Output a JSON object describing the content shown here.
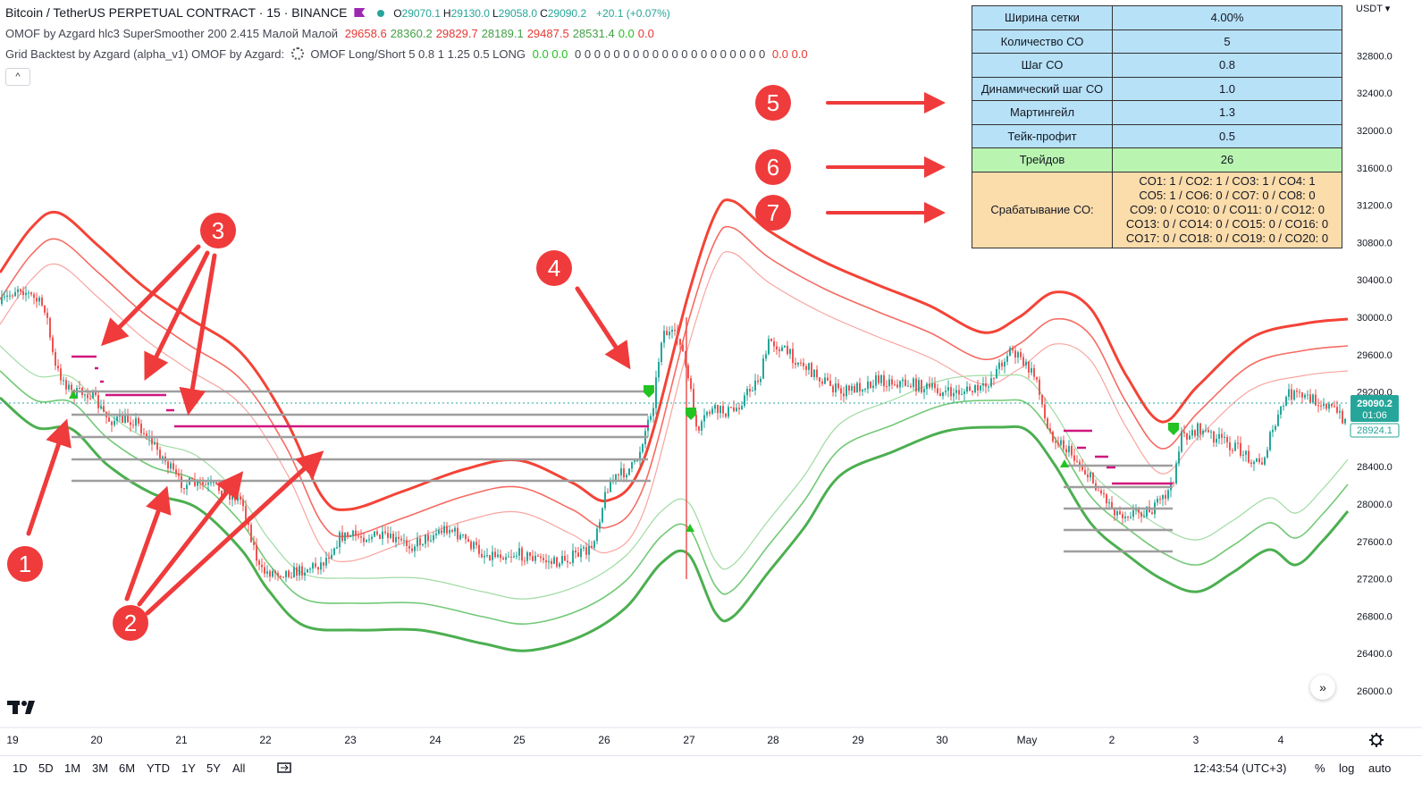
{
  "legend": {
    "symbol": "Bitcoin / TetherUS PERPETUAL CONTRACT · 15 · BINANCE",
    "ohlc": [
      {
        "key": "O",
        "val": "29070.1"
      },
      {
        "key": "H",
        "val": "29130.0"
      },
      {
        "key": "L",
        "val": "29058.0"
      },
      {
        "key": "C",
        "val": "29090.2"
      }
    ],
    "change": "+20.1 (+0.07%)",
    "ind1_name": "OMOF by Azgard hlc3 SuperSmoother 200 2.415 Малой Малой",
    "ind1_values": [
      {
        "v": "29658.6",
        "c": "#e53935"
      },
      {
        "v": "28360.2",
        "c": "#43a047"
      },
      {
        "v": "29829.7",
        "c": "#e53935"
      },
      {
        "v": "28189.1",
        "c": "#43a047"
      },
      {
        "v": "29487.5",
        "c": "#e53935"
      },
      {
        "v": "28531.4",
        "c": "#43a047"
      },
      {
        "v": "0.0",
        "c": "#22c322"
      },
      {
        "v": "0.0",
        "c": "#e53935"
      }
    ],
    "ind2_name": "Grid Backtest by Azgard (alpha_v1) OMOF by Azgard:",
    "ind2_params": "OMOF Long/Short 5 0.8 1 1.25 0.5 LONG",
    "ind2_values_a": "0.0 0.0",
    "ind2_zeros": "0 0 0 0 0 0 0 0 0 0 0 0 0 0 0 0 0 0 0 0",
    "ind2_values_b": "0.0 0.0",
    "collapse_icon": "^"
  },
  "params_table": {
    "rows": [
      {
        "label": "Ширина сетки",
        "value": "4.00%",
        "color": "blue"
      },
      {
        "label": "Количество СО",
        "value": "5",
        "color": "blue"
      },
      {
        "label": "Шаг СО",
        "value": "0.8",
        "color": "blue"
      },
      {
        "label": "Динамический шаг СО",
        "value": "1.0",
        "color": "blue"
      },
      {
        "label": "Мартингейл",
        "value": "1.3",
        "color": "blue"
      },
      {
        "label": "Тейк-профит",
        "value": "0.5",
        "color": "blue"
      },
      {
        "label": "Трейдов",
        "value": "26",
        "color": "green"
      }
    ],
    "so_label": "Срабатывание СО:",
    "so_lines": [
      "CO1: 1 / CO2: 1 / CO3: 1 / CO4: 1",
      "CO5: 1 / CO6: 0 / CO7: 0 / CO8: 0",
      "CO9: 0 / CO10: 0 / CO11: 0 / CO12: 0",
      "CO13: 0 / CO14: 0 / CO15: 0 / CO16: 0",
      "CO17: 0 / CO18: 0 / CO19: 0 / CO20: 0"
    ]
  },
  "price_axis": {
    "currency": "USDT ▾",
    "labels": [
      "32800.0",
      "32400.0",
      "32000.0",
      "31600.0",
      "31200.0",
      "30800.0",
      "30400.0",
      "30000.0",
      "29600.0",
      "29200.0",
      "28800.0",
      "28400.0",
      "28000.0",
      "27600.0",
      "27200.0",
      "26800.0",
      "26400.0",
      "26000.0"
    ],
    "last_price": "29090.2",
    "countdown": "01:06",
    "secondary_price": "28924.1",
    "range": [
      25900,
      33200
    ]
  },
  "time_axis": {
    "labels": [
      "19",
      "20",
      "21",
      "22",
      "23",
      "24",
      "25",
      "26",
      "27",
      "28",
      "29",
      "30",
      "May",
      "2",
      "3",
      "4"
    ]
  },
  "annotations": [
    "1",
    "2",
    "3",
    "4",
    "5",
    "6",
    "7"
  ],
  "bottom_bar": {
    "timeframes": [
      "1D",
      "5D",
      "1M",
      "3M",
      "6M",
      "YTD",
      "1Y",
      "5Y",
      "All"
    ],
    "time": "12:43:54 (UTC+3)",
    "percent": "%",
    "log": "log",
    "auto": "auto"
  },
  "colors": {
    "red": "#f44336",
    "green": "#4caf50",
    "magenta": "#d0167e",
    "grid_level": "#9e9e9e",
    "annotation": "#ef3b3b",
    "price_tag": "#26a69a"
  },
  "icons": {
    "logo": "tradingview-logo",
    "settings": "gear-icon",
    "compare": "compare-icon",
    "scroll": "double-chevron-right-icon"
  }
}
